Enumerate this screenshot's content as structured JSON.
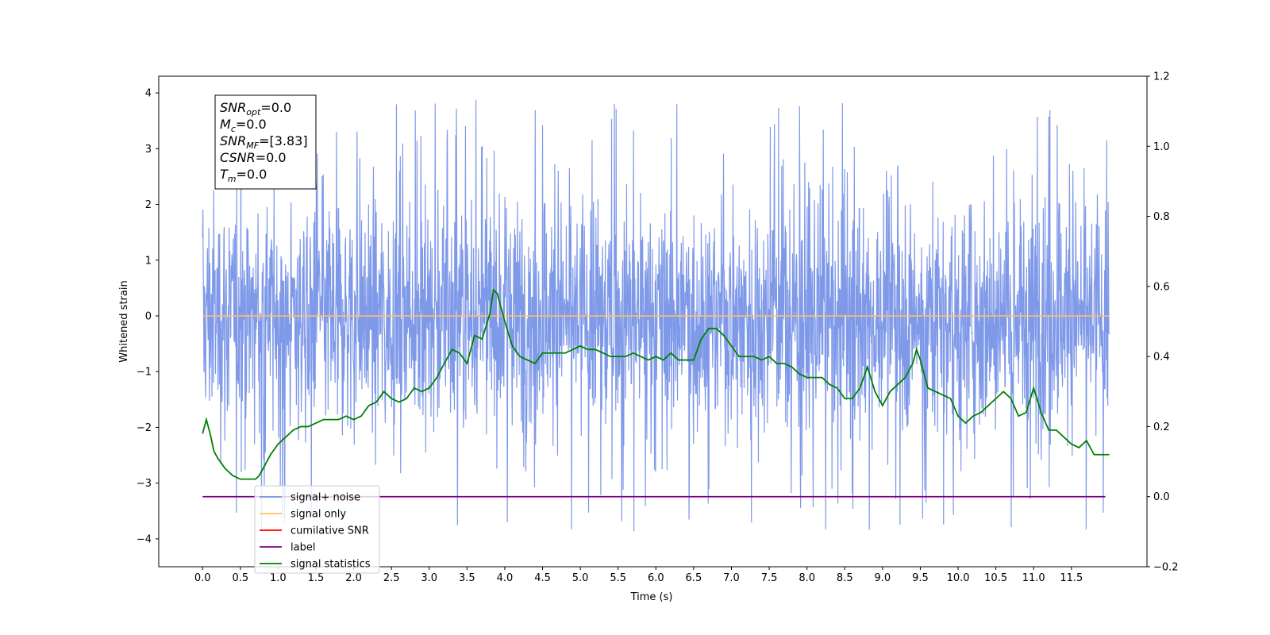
{
  "chart_data": {
    "type": "line",
    "xlabel": "Time (s)",
    "ylabel": "Whitened strain",
    "xlim": [
      -0.58,
      12.5
    ],
    "ylim_left": [
      -4.5,
      4.3
    ],
    "ylim_right": [
      -0.2,
      1.2
    ],
    "x_ticks": [
      "0.0",
      "0.5",
      "1.0",
      "1.5",
      "2.0",
      "2.5",
      "3.0",
      "3.5",
      "4.0",
      "4.5",
      "5.0",
      "5.5",
      "6.0",
      "6.5",
      "7.0",
      "7.5",
      "8.0",
      "8.5",
      "9.0",
      "9.5",
      "10.0",
      "10.5",
      "11.0",
      "11.5"
    ],
    "y_ticks_left": [
      "−4",
      "−3",
      "−2",
      "−1",
      "0",
      "1",
      "2",
      "3",
      "4"
    ],
    "y_ticks_right": [
      "−0.2",
      "0.0",
      "0.2",
      "0.4",
      "0.6",
      "0.8",
      "1.0",
      "1.2"
    ],
    "grid": false,
    "legend_position": "lower-left",
    "series": [
      {
        "name": "signal+ noise",
        "color": "#7893e8",
        "axis": "left",
        "description": "white noise, approx. ±2.5 with spikes to ±4, over 0.0–12.0 s"
      },
      {
        "name": "signal only",
        "color": "#ffbf66",
        "axis": "left",
        "values": "constant 0.0 over 0.0–12.0 s"
      },
      {
        "name": "cumilative SNR",
        "color": "#ff0000",
        "axis": "right"
      },
      {
        "name": "label",
        "color": "#800080",
        "axis": "right",
        "values": "constant 0.0 over 0.0–11.95 s"
      },
      {
        "name": "signal statistics",
        "color": "#008000",
        "axis": "right",
        "x": [
          0.0,
          0.05,
          0.1,
          0.15,
          0.2,
          0.3,
          0.4,
          0.5,
          0.6,
          0.7,
          0.75,
          0.8,
          0.9,
          1.0,
          1.1,
          1.2,
          1.3,
          1.4,
          1.5,
          1.6,
          1.7,
          1.8,
          1.9,
          2.0,
          2.1,
          2.2,
          2.3,
          2.4,
          2.5,
          2.6,
          2.7,
          2.8,
          2.9,
          3.0,
          3.1,
          3.2,
          3.3,
          3.4,
          3.5,
          3.6,
          3.7,
          3.8,
          3.85,
          3.9,
          4.0,
          4.1,
          4.2,
          4.3,
          4.4,
          4.5,
          4.6,
          4.7,
          4.8,
          4.9,
          5.0,
          5.1,
          5.2,
          5.3,
          5.4,
          5.5,
          5.6,
          5.7,
          5.8,
          5.9,
          6.0,
          6.1,
          6.2,
          6.3,
          6.4,
          6.5,
          6.6,
          6.7,
          6.8,
          6.9,
          7.0,
          7.1,
          7.2,
          7.3,
          7.4,
          7.5,
          7.6,
          7.7,
          7.8,
          7.9,
          8.0,
          8.1,
          8.2,
          8.3,
          8.4,
          8.5,
          8.6,
          8.7,
          8.8,
          8.9,
          9.0,
          9.1,
          9.2,
          9.3,
          9.4,
          9.45,
          9.5,
          9.6,
          9.7,
          9.8,
          9.9,
          10.0,
          10.1,
          10.2,
          10.3,
          10.4,
          10.5,
          10.6,
          10.7,
          10.8,
          10.9,
          11.0,
          11.1,
          11.2,
          11.3,
          11.4,
          11.5,
          11.6,
          11.7,
          11.8,
          11.9,
          12.0
        ],
        "y": [
          0.18,
          0.22,
          0.18,
          0.13,
          0.11,
          0.08,
          0.06,
          0.05,
          0.05,
          0.05,
          0.06,
          0.08,
          0.12,
          0.15,
          0.17,
          0.19,
          0.2,
          0.2,
          0.21,
          0.22,
          0.22,
          0.22,
          0.23,
          0.22,
          0.23,
          0.26,
          0.27,
          0.3,
          0.28,
          0.27,
          0.28,
          0.31,
          0.3,
          0.31,
          0.34,
          0.38,
          0.42,
          0.41,
          0.38,
          0.46,
          0.45,
          0.52,
          0.59,
          0.58,
          0.5,
          0.43,
          0.4,
          0.39,
          0.38,
          0.41,
          0.41,
          0.41,
          0.41,
          0.42,
          0.43,
          0.42,
          0.42,
          0.41,
          0.4,
          0.4,
          0.4,
          0.41,
          0.4,
          0.39,
          0.4,
          0.39,
          0.41,
          0.39,
          0.39,
          0.39,
          0.45,
          0.48,
          0.48,
          0.46,
          0.43,
          0.4,
          0.4,
          0.4,
          0.39,
          0.4,
          0.38,
          0.38,
          0.37,
          0.35,
          0.34,
          0.34,
          0.34,
          0.32,
          0.31,
          0.28,
          0.28,
          0.31,
          0.37,
          0.3,
          0.26,
          0.3,
          0.32,
          0.34,
          0.38,
          0.42,
          0.39,
          0.31,
          0.3,
          0.29,
          0.28,
          0.23,
          0.21,
          0.23,
          0.24,
          0.26,
          0.28,
          0.3,
          0.28,
          0.23,
          0.24,
          0.31,
          0.24,
          0.19,
          0.19,
          0.17,
          0.15,
          0.14,
          0.16,
          0.12,
          0.12,
          0.12
        ]
      }
    ],
    "annotation": {
      "lines": [
        {
          "base": "SNR",
          "sub": "opt",
          "value": "=0.0"
        },
        {
          "base": "M",
          "sub": "c",
          "value": "=0.0"
        },
        {
          "base": "SNR",
          "sub": "MF",
          "value": "=[3.83]"
        },
        {
          "base": "CSNR",
          "sub": "",
          "value": "=0.0"
        },
        {
          "base": "T",
          "sub": "m",
          "value": "=0.0"
        }
      ]
    }
  }
}
